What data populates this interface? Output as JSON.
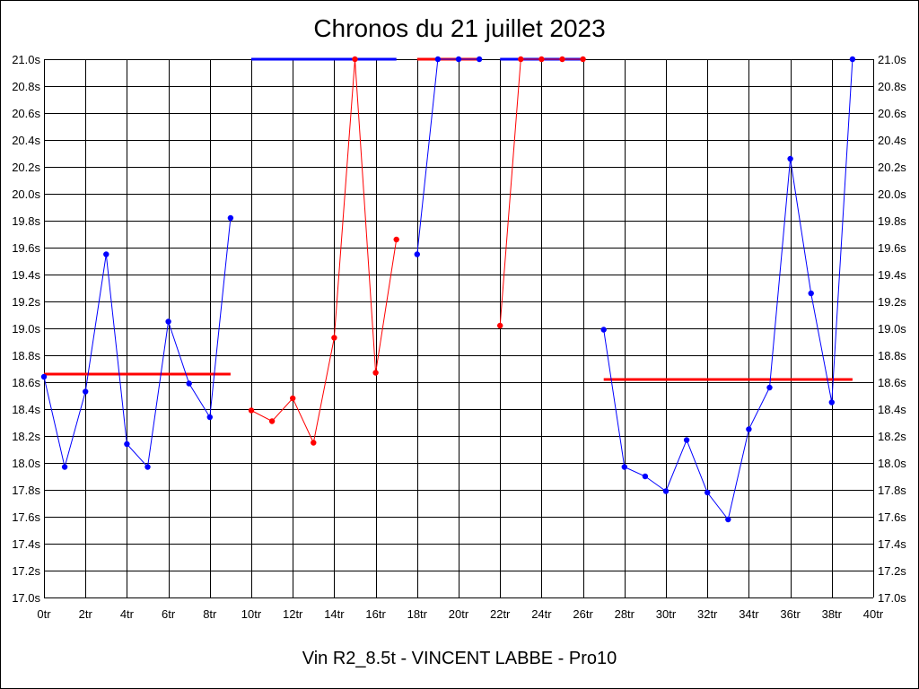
{
  "title": "Chronos du 21 juillet 2023",
  "footer": "Vin R2_8.5t - VINCENT LABBE - Pro10",
  "chart_data": {
    "type": "line",
    "title": "Chronos du 21 juillet 2023",
    "xlabel": "",
    "ylabel": "",
    "xlim": [
      0,
      40
    ],
    "ylim": [
      17.0,
      21.0
    ],
    "grid": true,
    "x_ticks": [
      "0tr",
      "2tr",
      "4tr",
      "6tr",
      "8tr",
      "10tr",
      "12tr",
      "14tr",
      "16tr",
      "18tr",
      "20tr",
      "22tr",
      "24tr",
      "26tr",
      "28tr",
      "30tr",
      "32tr",
      "34tr",
      "36tr",
      "38tr",
      "40tr"
    ],
    "y_ticks": [
      "17.0s",
      "17.2s",
      "17.4s",
      "17.6s",
      "17.8s",
      "18.0s",
      "18.2s",
      "18.4s",
      "18.6s",
      "18.8s",
      "19.0s",
      "19.2s",
      "19.4s",
      "19.6s",
      "19.8s",
      "20.0s",
      "20.2s",
      "20.4s",
      "20.6s",
      "20.8s",
      "21.0s"
    ],
    "colors": {
      "blue": "#0000ff",
      "red": "#ff0000",
      "grid": "#000000"
    },
    "series": [
      {
        "color": "#0000ff",
        "x": [
          0,
          1,
          2,
          3,
          4,
          5,
          6,
          7,
          8,
          9
        ],
        "y": [
          18.64,
          17.97,
          18.53,
          19.55,
          18.14,
          17.97,
          19.05,
          18.59,
          18.34,
          19.82
        ]
      },
      {
        "color": "#ff0000",
        "x": [
          10,
          11,
          12,
          13,
          14,
          15,
          16,
          17
        ],
        "y": [
          18.39,
          18.31,
          18.48,
          18.15,
          18.93,
          21.0,
          18.67,
          19.66
        ]
      },
      {
        "color": "#0000ff",
        "x": [
          18,
          19,
          20,
          21
        ],
        "y": [
          19.55,
          21.0,
          21.0,
          21.0
        ]
      },
      {
        "color": "#ff0000",
        "x": [
          22,
          23,
          24,
          25,
          26
        ],
        "y": [
          19.02,
          21.0,
          21.0,
          21.0,
          21.0
        ]
      },
      {
        "color": "#0000ff",
        "x": [
          27,
          28,
          29,
          30,
          31,
          32,
          33,
          34,
          35,
          36,
          37,
          38,
          39
        ],
        "y": [
          18.99,
          17.97,
          17.9,
          17.79,
          18.17,
          17.78,
          17.58,
          18.25,
          18.56,
          20.26,
          19.26,
          18.45,
          21.0
        ]
      }
    ],
    "averages": [
      {
        "color": "#ff0000",
        "x_start": 0,
        "x_end": 9,
        "y": 18.66
      },
      {
        "color": "#0000ff",
        "x_start": 10,
        "x_end": 17,
        "y": 21.0
      },
      {
        "color": "#ff0000",
        "x_start": 18,
        "x_end": 21,
        "y": 21.0
      },
      {
        "color": "#0000ff",
        "x_start": 22,
        "x_end": 26,
        "y": 21.0
      },
      {
        "color": "#ff0000",
        "x_start": 27,
        "x_end": 39,
        "y": 18.62
      }
    ]
  }
}
